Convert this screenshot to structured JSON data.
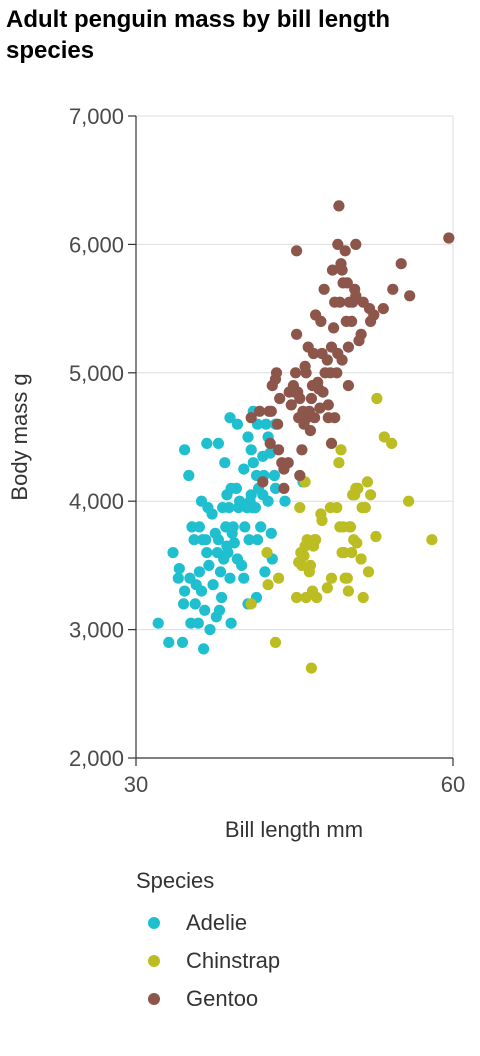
{
  "chart_data": {
    "type": "scatter",
    "title": "Adult penguin mass by bill length species",
    "xlabel": "Bill length mm",
    "ylabel": "Body mass g",
    "xlim": [
      30,
      60
    ],
    "ylim": [
      2000,
      7000
    ],
    "x_ticks": [
      30,
      60
    ],
    "x_tick_labels": [
      "30",
      "60"
    ],
    "y_ticks": [
      2000,
      3000,
      4000,
      5000,
      6000,
      7000
    ],
    "y_tick_labels": [
      "2,000",
      "3,000",
      "4,000",
      "5,000",
      "6,000",
      "7,000"
    ],
    "grid": "horizontal",
    "legend": {
      "title": "Species",
      "placement": "bottom",
      "entries": [
        "Adelie",
        "Chinstrap",
        "Gentoo"
      ]
    },
    "series": [
      {
        "name": "Adelie",
        "color": "#1fbfcf",
        "points": [
          [
            32.1,
            3050
          ],
          [
            33.1,
            2900
          ],
          [
            34.4,
            2900
          ],
          [
            33.5,
            3600
          ],
          [
            34.0,
            3400
          ],
          [
            34.1,
            3475
          ],
          [
            34.5,
            3200
          ],
          [
            34.6,
            3300
          ],
          [
            34.6,
            4400
          ],
          [
            35.0,
            4200
          ],
          [
            35.1,
            3400
          ],
          [
            35.2,
            3050
          ],
          [
            35.3,
            3800
          ],
          [
            35.5,
            3700
          ],
          [
            35.6,
            3200
          ],
          [
            35.7,
            3350
          ],
          [
            35.9,
            3050
          ],
          [
            36.0,
            3450
          ],
          [
            36.0,
            3800
          ],
          [
            36.2,
            3300
          ],
          [
            36.3,
            3700
          ],
          [
            36.4,
            2850
          ],
          [
            36.5,
            3150
          ],
          [
            36.6,
            3700
          ],
          [
            36.7,
            3600
          ],
          [
            36.8,
            3950
          ],
          [
            36.9,
            3500
          ],
          [
            37.0,
            3000
          ],
          [
            37.2,
            3900
          ],
          [
            37.3,
            3350
          ],
          [
            37.5,
            3750
          ],
          [
            37.6,
            3100
          ],
          [
            37.7,
            3600
          ],
          [
            37.8,
            3700
          ],
          [
            37.9,
            3150
          ],
          [
            38.0,
            3450
          ],
          [
            38.1,
            3250
          ],
          [
            38.2,
            3950
          ],
          [
            38.3,
            3550
          ],
          [
            38.5,
            3800
          ],
          [
            38.6,
            3650
          ],
          [
            38.7,
            3600
          ],
          [
            38.8,
            3950
          ],
          [
            38.9,
            3400
          ],
          [
            39.0,
            3050
          ],
          [
            39.1,
            3750
          ],
          [
            39.2,
            3800
          ],
          [
            39.3,
            3675
          ],
          [
            39.5,
            4100
          ],
          [
            39.6,
            3550
          ],
          [
            39.7,
            3950
          ],
          [
            39.8,
            4000
          ],
          [
            40.0,
            3500
          ],
          [
            40.2,
            3400
          ],
          [
            40.3,
            3800
          ],
          [
            40.5,
            3950
          ],
          [
            40.6,
            3200
          ],
          [
            40.7,
            3700
          ],
          [
            40.8,
            4000
          ],
          [
            40.9,
            4050
          ],
          [
            41.0,
            3950
          ],
          [
            41.1,
            4300
          ],
          [
            41.3,
            3950
          ],
          [
            41.4,
            3250
          ],
          [
            41.5,
            3700
          ],
          [
            41.6,
            4100
          ],
          [
            41.8,
            3800
          ],
          [
            42.0,
            4050
          ],
          [
            42.2,
            3450
          ],
          [
            42.3,
            4600
          ],
          [
            42.5,
            4000
          ],
          [
            42.7,
            4375
          ],
          [
            42.8,
            3750
          ],
          [
            42.9,
            3550
          ],
          [
            43.1,
            4200
          ],
          [
            43.2,
            4100
          ],
          [
            44.1,
            4000
          ],
          [
            45.8,
            4150
          ],
          [
            36.2,
            4000
          ],
          [
            37.8,
            4450
          ],
          [
            38.4,
            4300
          ],
          [
            38.9,
            4650
          ],
          [
            39.6,
            4600
          ],
          [
            40.2,
            4250
          ],
          [
            40.6,
            4500
          ],
          [
            41.1,
            4700
          ],
          [
            41.5,
            4600
          ],
          [
            42.0,
            4350
          ],
          [
            42.5,
            4500
          ],
          [
            43.2,
            4600
          ],
          [
            36.7,
            4450
          ],
          [
            38.6,
            4050
          ],
          [
            39.0,
            4100
          ],
          [
            40.9,
            4400
          ],
          [
            41.4,
            4200
          ],
          [
            42.1,
            4200
          ]
        ]
      },
      {
        "name": "Chinstrap",
        "color": "#bcbd22",
        "points": [
          [
            40.9,
            3200
          ],
          [
            42.4,
            3600
          ],
          [
            42.5,
            3350
          ],
          [
            43.2,
            2900
          ],
          [
            43.5,
            3400
          ],
          [
            45.2,
            3250
          ],
          [
            45.4,
            3525
          ],
          [
            45.5,
            3950
          ],
          [
            45.6,
            3600
          ],
          [
            45.7,
            3500
          ],
          [
            45.9,
            3575
          ],
          [
            46.0,
            3650
          ],
          [
            46.1,
            3250
          ],
          [
            46.2,
            3700
          ],
          [
            46.4,
            3450
          ],
          [
            46.5,
            3500
          ],
          [
            46.6,
            2700
          ],
          [
            46.7,
            3300
          ],
          [
            46.8,
            3650
          ],
          [
            46.9,
            3700
          ],
          [
            47.0,
            3700
          ],
          [
            47.5,
            3900
          ],
          [
            47.6,
            3850
          ],
          [
            48.1,
            3325
          ],
          [
            48.5,
            3400
          ],
          [
            49.0,
            3950
          ],
          [
            49.2,
            4300
          ],
          [
            49.3,
            3800
          ],
          [
            49.5,
            3600
          ],
          [
            49.6,
            3800
          ],
          [
            49.7,
            3600
          ],
          [
            49.8,
            3400
          ],
          [
            50.0,
            3400
          ],
          [
            50.1,
            3300
          ],
          [
            50.2,
            3800
          ],
          [
            50.3,
            3800
          ],
          [
            50.5,
            4050
          ],
          [
            50.6,
            3700
          ],
          [
            50.7,
            4050
          ],
          [
            50.8,
            4100
          ],
          [
            50.9,
            3675
          ],
          [
            51.0,
            4100
          ],
          [
            51.3,
            3550
          ],
          [
            51.4,
            3950
          ],
          [
            51.5,
            3250
          ],
          [
            51.7,
            3950
          ],
          [
            51.9,
            4150
          ],
          [
            52.0,
            3450
          ],
          [
            52.2,
            4050
          ],
          [
            52.7,
            3725
          ],
          [
            52.8,
            4800
          ],
          [
            53.5,
            4500
          ],
          [
            54.2,
            4450
          ],
          [
            55.8,
            4000
          ],
          [
            58.0,
            3700
          ],
          [
            49.4,
            4400
          ],
          [
            47.1,
            3250
          ],
          [
            46.0,
            4150
          ],
          [
            50.4,
            3600
          ],
          [
            48.4,
            3950
          ]
        ]
      },
      {
        "name": "Gentoo",
        "color": "#8c564b",
        "points": [
          [
            40.9,
            4650
          ],
          [
            41.7,
            4700
          ],
          [
            42.0,
            4150
          ],
          [
            42.6,
            4700
          ],
          [
            42.7,
            4450
          ],
          [
            42.8,
            4700
          ],
          [
            42.9,
            4900
          ],
          [
            43.2,
            4950
          ],
          [
            43.3,
            5000
          ],
          [
            43.4,
            4600
          ],
          [
            43.5,
            4400
          ],
          [
            43.6,
            4800
          ],
          [
            43.8,
            4300
          ],
          [
            44.0,
            4250
          ],
          [
            44.4,
            4300
          ],
          [
            44.5,
            4850
          ],
          [
            44.9,
            4900
          ],
          [
            45.0,
            4850
          ],
          [
            45.1,
            5000
          ],
          [
            45.2,
            5300
          ],
          [
            45.3,
            4850
          ],
          [
            45.4,
            4650
          ],
          [
            45.5,
            4200
          ],
          [
            45.7,
            4400
          ],
          [
            45.8,
            4700
          ],
          [
            46.1,
            5000
          ],
          [
            46.2,
            4650
          ],
          [
            46.4,
            4700
          ],
          [
            46.5,
            4550
          ],
          [
            46.6,
            4800
          ],
          [
            46.8,
            5150
          ],
          [
            46.9,
            4650
          ],
          [
            47.2,
            4925
          ],
          [
            47.3,
            4875
          ],
          [
            47.4,
            4725
          ],
          [
            47.5,
            5400
          ],
          [
            47.7,
            4850
          ],
          [
            47.8,
            5650
          ],
          [
            48.1,
            5100
          ],
          [
            48.2,
            4650
          ],
          [
            48.4,
            5000
          ],
          [
            48.5,
            5200
          ],
          [
            48.6,
            5800
          ],
          [
            48.7,
            5350
          ],
          [
            48.8,
            5550
          ],
          [
            49.0,
            5000
          ],
          [
            49.1,
            5150
          ],
          [
            49.2,
            6300
          ],
          [
            49.3,
            5550
          ],
          [
            49.4,
            5850
          ],
          [
            49.5,
            5800
          ],
          [
            49.6,
            5700
          ],
          [
            49.8,
            5950
          ],
          [
            49.9,
            5400
          ],
          [
            50.0,
            5700
          ],
          [
            50.1,
            5200
          ],
          [
            50.2,
            5550
          ],
          [
            50.4,
            5400
          ],
          [
            50.5,
            5550
          ],
          [
            50.7,
            5650
          ],
          [
            50.8,
            5600
          ],
          [
            51.1,
            5250
          ],
          [
            51.3,
            5300
          ],
          [
            51.5,
            5550
          ],
          [
            52.1,
            5500
          ],
          [
            52.2,
            5400
          ],
          [
            52.5,
            5450
          ],
          [
            53.4,
            5500
          ],
          [
            54.3,
            5650
          ],
          [
            55.1,
            5850
          ],
          [
            55.9,
            5600
          ],
          [
            59.6,
            6050
          ],
          [
            45.2,
            5950
          ],
          [
            49.1,
            6000
          ],
          [
            50.8,
            6000
          ],
          [
            48.5,
            4450
          ],
          [
            46.3,
            5200
          ],
          [
            47.6,
            5150
          ],
          [
            44.0,
            4100
          ],
          [
            45.5,
            4800
          ],
          [
            46.7,
            4900
          ],
          [
            48.2,
            4750
          ],
          [
            47.0,
            5450
          ],
          [
            49.5,
            5100
          ],
          [
            44.7,
            4750
          ],
          [
            45.9,
            4600
          ],
          [
            50.1,
            4900
          ],
          [
            48.8,
            4650
          ],
          [
            46.0,
            5050
          ],
          [
            47.9,
            5000
          ]
        ]
      }
    ]
  }
}
